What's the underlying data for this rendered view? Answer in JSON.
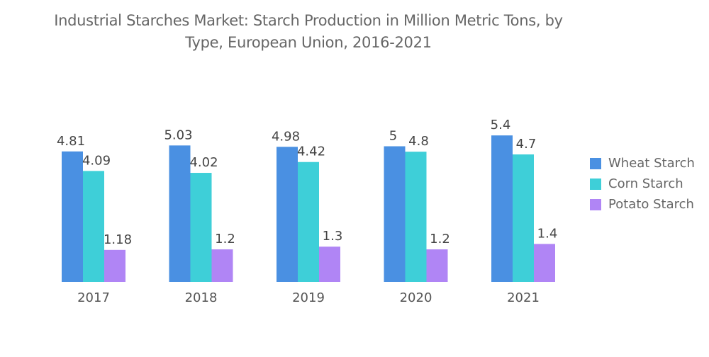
{
  "chart_data": {
    "type": "bar",
    "title": "Industrial Starches Market: Starch Production in Million Metric Tons, by Type, European Union, 2016-2021",
    "title_lines": [
      "Industrial Starches Market: Starch Production in Million Metric Tons, by",
      "Type, European Union, 2016-2021"
    ],
    "xlabel": "",
    "ylabel": "",
    "categories": [
      "2017",
      "2018",
      "2019",
      "2020",
      "2021"
    ],
    "series": [
      {
        "name": "Wheat Starch",
        "color": "#4a90e2",
        "values": [
          4.81,
          5.03,
          4.98,
          5,
          5.4
        ],
        "labels": [
          "4.81",
          "5.03",
          "4.98",
          "5",
          "5.4"
        ]
      },
      {
        "name": "Corn Starch",
        "color": "#3ecfd8",
        "values": [
          4.09,
          4.02,
          4.42,
          4.8,
          4.7
        ],
        "labels": [
          "4.09",
          "4.02",
          "4.42",
          "4.8",
          "4.7"
        ]
      },
      {
        "name": "Potato Starch",
        "color": "#b085f5",
        "values": [
          1.18,
          1.2,
          1.3,
          1.2,
          1.4
        ],
        "labels": [
          "1.18",
          "1.2",
          "1.3",
          "1.2",
          "1.4"
        ]
      }
    ],
    "ylim": [
      0,
      5.4
    ],
    "grid": false,
    "legend": "right"
  }
}
